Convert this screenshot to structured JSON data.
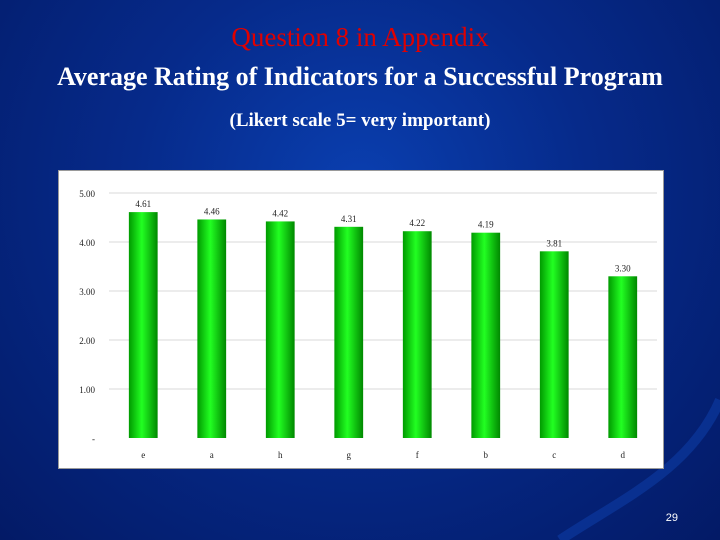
{
  "slide": {
    "title": "Question 8 in Appendix",
    "subtitle": "Average Rating of Indicators for a Successful Program",
    "scale_note": "(Likert scale 5= very important)",
    "page_number": "29"
  },
  "colors": {
    "background": "#062a8a",
    "title": "#e00000",
    "bar": "#00cc00"
  },
  "chart_data": {
    "type": "bar",
    "title": "",
    "xlabel": "",
    "ylabel": "",
    "categories": [
      "e",
      "a",
      "h",
      "g",
      "f",
      "b",
      "c",
      "d"
    ],
    "values": [
      4.61,
      4.46,
      4.42,
      4.31,
      4.22,
      4.19,
      3.81,
      3.3
    ],
    "data_labels": [
      "4.61",
      "4.46",
      "4.42",
      "4.31",
      "4.22",
      "4.19",
      "3.81",
      "3.30"
    ],
    "ylim": [
      0,
      5
    ],
    "yticks": [
      0,
      1,
      2,
      3,
      4,
      5
    ],
    "ytick_labels": [
      "-",
      "1.00",
      "2.00",
      "3.00",
      "4.00",
      "5.00"
    ],
    "grid": true,
    "legend": "none"
  }
}
